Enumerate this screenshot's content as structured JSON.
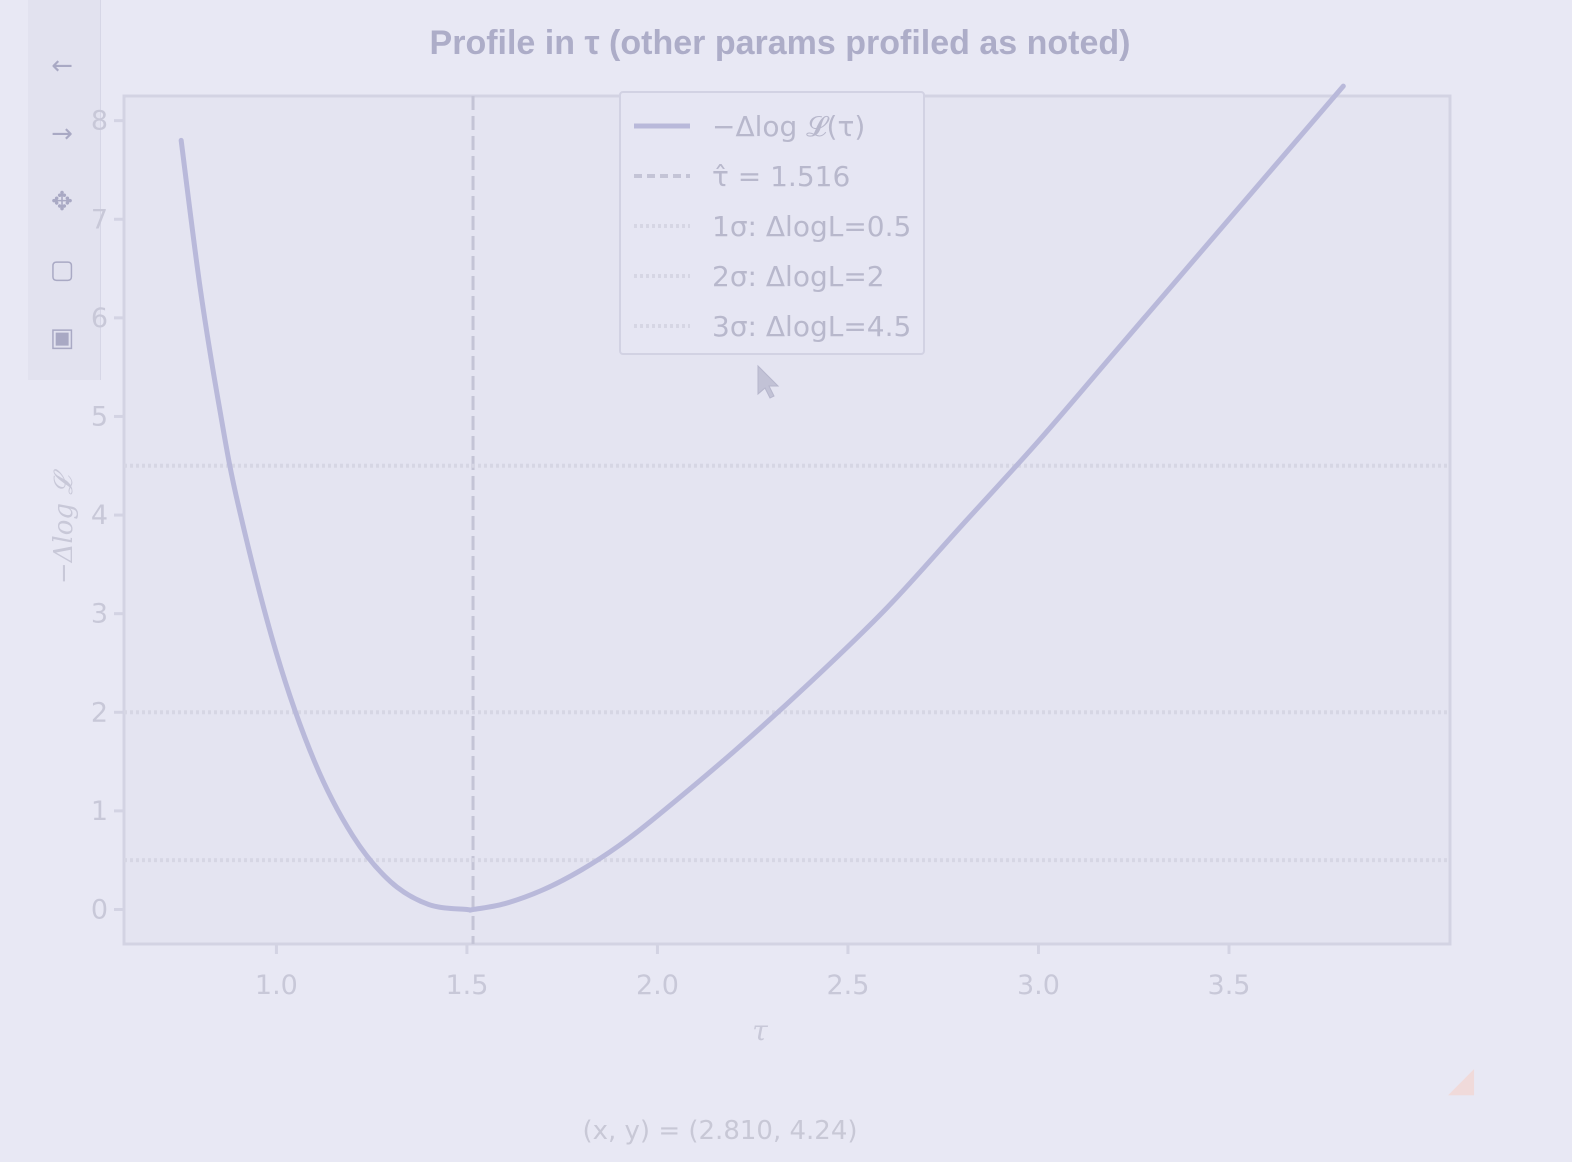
{
  "toolbar": {
    "items": [
      {
        "name": "back-icon",
        "glyph": "←"
      },
      {
        "name": "forward-icon",
        "glyph": "→"
      },
      {
        "name": "pan-icon",
        "glyph": "✥"
      },
      {
        "name": "zoom-icon",
        "glyph": "▢"
      },
      {
        "name": "save-icon",
        "glyph": "▣"
      }
    ]
  },
  "status": {
    "cursor_readout": "(x, y) = (2.810, 4.24)"
  },
  "colors": {
    "curve": "#b9b9da",
    "axes": "#d3d3e3",
    "text": "#b8b8cc",
    "title": "#adadc8",
    "tau_line": "#c4c4d6",
    "sigma_lines": "#d6d6e4"
  },
  "chart_data": {
    "type": "line",
    "title": "Profile in τ (other params profiled as noted)",
    "xlabel": "τ",
    "ylabel": "−Δlog 𝓛",
    "xlim": [
      0.6,
      4.08
    ],
    "ylim": [
      -0.35,
      8.25
    ],
    "xticks": [
      1.0,
      1.5,
      2.0,
      2.5,
      3.0,
      3.5
    ],
    "xtick_labels": [
      "1.0",
      "1.5",
      "2.0",
      "2.5",
      "3.0",
      "3.5"
    ],
    "yticks": [
      0,
      1,
      2,
      3,
      4,
      5,
      6,
      7,
      8
    ],
    "ytick_labels": [
      "0",
      "1",
      "2",
      "3",
      "4",
      "5",
      "6",
      "7",
      "8"
    ],
    "legend_position": "upper center",
    "series": [
      {
        "name": "−Δlog 𝓛(τ)",
        "style": "solid",
        "x": [
          0.75,
          0.8,
          0.85,
          0.9,
          1.0,
          1.1,
          1.2,
          1.3,
          1.4,
          1.5,
          1.516,
          1.6,
          1.7,
          1.8,
          1.9,
          2.0,
          2.2,
          2.4,
          2.6,
          2.8,
          3.0,
          3.2,
          3.4,
          3.6,
          3.8
        ],
        "y": [
          7.8,
          6.3,
          5.1,
          4.1,
          2.6,
          1.5,
          0.75,
          0.28,
          0.05,
          0.0,
          0.0,
          0.06,
          0.2,
          0.4,
          0.65,
          0.95,
          1.6,
          2.3,
          3.05,
          3.9,
          4.75,
          5.65,
          6.55,
          7.45,
          8.35
        ]
      },
      {
        "name": "τ̂ = 1.516",
        "style": "dashed",
        "vertical_x": 1.516
      },
      {
        "name": "1σ: ΔlogL=0.5",
        "style": "dotted",
        "horizontal_y": 0.5
      },
      {
        "name": "2σ: ΔlogL=2",
        "style": "dotted",
        "horizontal_y": 2
      },
      {
        "name": "3σ: ΔlogL=4.5",
        "style": "dotted",
        "horizontal_y": 4.5
      }
    ]
  }
}
